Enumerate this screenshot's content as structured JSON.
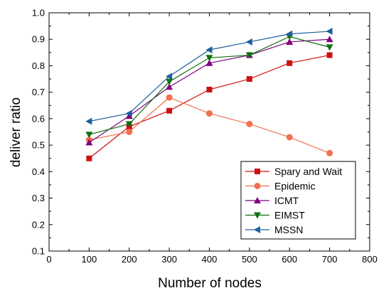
{
  "chart_data": {
    "type": "line",
    "title": "",
    "xlabel": "Number of nodes",
    "ylabel": "deliver ratio",
    "xlim": [
      0,
      800
    ],
    "ylim": [
      0.1,
      1.0
    ],
    "xticks": [
      "0",
      "100",
      "200",
      "300",
      "400",
      "500",
      "600",
      "700",
      "800"
    ],
    "yticks": [
      "0.1",
      "0.2",
      "0.3",
      "0.4",
      "0.5",
      "0.6",
      "0.7",
      "0.8",
      "0.9",
      "1.0"
    ],
    "grid": false,
    "legend_position": "bottom-right",
    "x": [
      100,
      200,
      300,
      400,
      500,
      600,
      700
    ],
    "series": [
      {
        "name": "Spary and Wait",
        "color": "#cc1111",
        "marker": "square",
        "values": [
          0.45,
          0.57,
          0.63,
          0.71,
          0.75,
          0.81,
          0.84
        ]
      },
      {
        "name": "Epidemic",
        "color": "#f07050",
        "marker": "circle",
        "values": [
          0.52,
          0.55,
          0.68,
          0.62,
          0.58,
          0.53,
          0.47
        ]
      },
      {
        "name": "ICMT",
        "color": "#800080",
        "marker": "triangle-up",
        "values": [
          0.51,
          0.61,
          0.72,
          0.81,
          0.84,
          0.89,
          0.9
        ]
      },
      {
        "name": "EIMST",
        "color": "#107010",
        "marker": "triangle-down",
        "values": [
          0.54,
          0.58,
          0.74,
          0.83,
          0.84,
          0.91,
          0.87
        ]
      },
      {
        "name": "MSSN",
        "color": "#1f5f9f",
        "marker": "triangle-left",
        "values": [
          0.59,
          0.62,
          0.76,
          0.86,
          0.89,
          0.92,
          0.93
        ]
      }
    ]
  }
}
